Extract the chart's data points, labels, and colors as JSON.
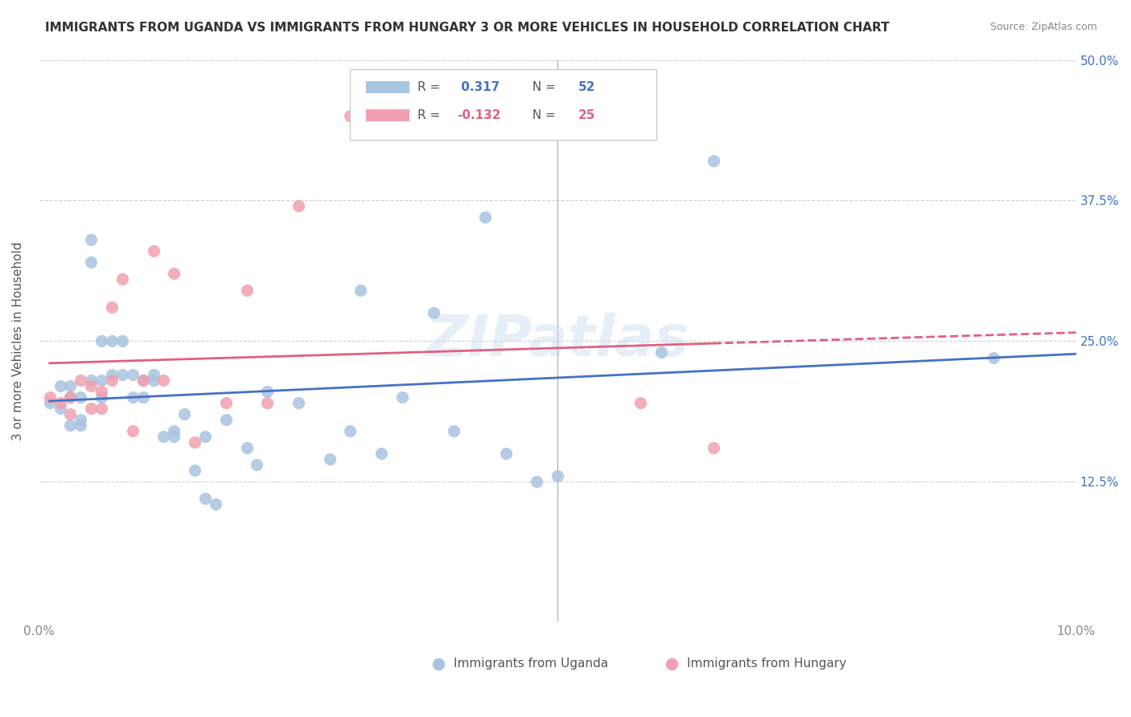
{
  "title": "IMMIGRANTS FROM UGANDA VS IMMIGRANTS FROM HUNGARY 3 OR MORE VEHICLES IN HOUSEHOLD CORRELATION CHART",
  "source": "Source: ZipAtlas.com",
  "ylabel": "3 or more Vehicles in Household",
  "xlim": [
    0.0,
    0.1
  ],
  "ylim": [
    0.0,
    0.5
  ],
  "xticks": [
    0.0,
    0.02,
    0.04,
    0.06,
    0.08,
    0.1
  ],
  "yticks": [
    0.0,
    0.125,
    0.25,
    0.375,
    0.5
  ],
  "yticklabels": [
    "",
    "12.5%",
    "25.0%",
    "37.5%",
    "50.0%"
  ],
  "legend_r_uganda": "0.317",
  "legend_n_uganda": "52",
  "legend_r_hungary": "-0.132",
  "legend_n_hungary": "25",
  "uganda_color": "#a8c4e0",
  "hungary_color": "#f0a0b0",
  "trend_uganda_color": "#4472c4",
  "trend_hungary_color": "#e06080",
  "right_axis_color": "#4472c4",
  "background_color": "#ffffff",
  "grid_color": "#d0d0d0",
  "uganda_x": [
    0.001,
    0.002,
    0.002,
    0.003,
    0.003,
    0.003,
    0.004,
    0.004,
    0.004,
    0.005,
    0.005,
    0.005,
    0.006,
    0.006,
    0.006,
    0.007,
    0.007,
    0.008,
    0.008,
    0.009,
    0.009,
    0.01,
    0.01,
    0.011,
    0.011,
    0.012,
    0.013,
    0.013,
    0.014,
    0.015,
    0.016,
    0.016,
    0.017,
    0.018,
    0.02,
    0.021,
    0.022,
    0.025,
    0.028,
    0.03,
    0.031,
    0.033,
    0.035,
    0.038,
    0.04,
    0.043,
    0.045,
    0.048,
    0.05,
    0.06,
    0.065,
    0.092
  ],
  "uganda_y": [
    0.195,
    0.19,
    0.21,
    0.175,
    0.2,
    0.21,
    0.175,
    0.18,
    0.2,
    0.32,
    0.34,
    0.215,
    0.2,
    0.215,
    0.25,
    0.25,
    0.22,
    0.25,
    0.22,
    0.22,
    0.2,
    0.215,
    0.2,
    0.22,
    0.215,
    0.165,
    0.165,
    0.17,
    0.185,
    0.135,
    0.165,
    0.11,
    0.105,
    0.18,
    0.155,
    0.14,
    0.205,
    0.195,
    0.145,
    0.17,
    0.295,
    0.15,
    0.2,
    0.275,
    0.17,
    0.36,
    0.15,
    0.125,
    0.13,
    0.24,
    0.41,
    0.235
  ],
  "hungary_x": [
    0.001,
    0.002,
    0.003,
    0.003,
    0.004,
    0.005,
    0.005,
    0.006,
    0.006,
    0.007,
    0.007,
    0.008,
    0.009,
    0.01,
    0.011,
    0.012,
    0.013,
    0.015,
    0.018,
    0.02,
    0.022,
    0.025,
    0.03,
    0.058,
    0.065
  ],
  "hungary_y": [
    0.2,
    0.195,
    0.185,
    0.2,
    0.215,
    0.21,
    0.19,
    0.205,
    0.19,
    0.28,
    0.215,
    0.305,
    0.17,
    0.215,
    0.33,
    0.215,
    0.31,
    0.16,
    0.195,
    0.295,
    0.195,
    0.37,
    0.45,
    0.195,
    0.155
  ]
}
